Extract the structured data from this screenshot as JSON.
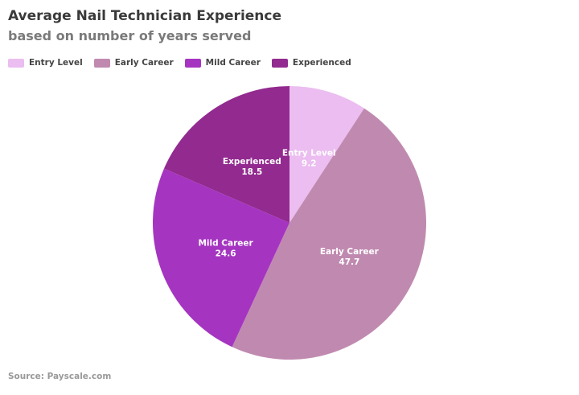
{
  "chart_data": {
    "type": "pie",
    "title": "Average Nail Technician Experience",
    "subtitle": "based on number of years served",
    "categories": [
      "Entry Level",
      "Early Career",
      "Mild Career",
      "Experienced"
    ],
    "values": [
      9.2,
      47.7,
      24.6,
      18.5
    ],
    "colors": [
      "#ebbdf0",
      "#c08ab0",
      "#a535c0",
      "#922a8f"
    ],
    "legend_position": "top-left",
    "source": "Source: Payscale.com"
  }
}
